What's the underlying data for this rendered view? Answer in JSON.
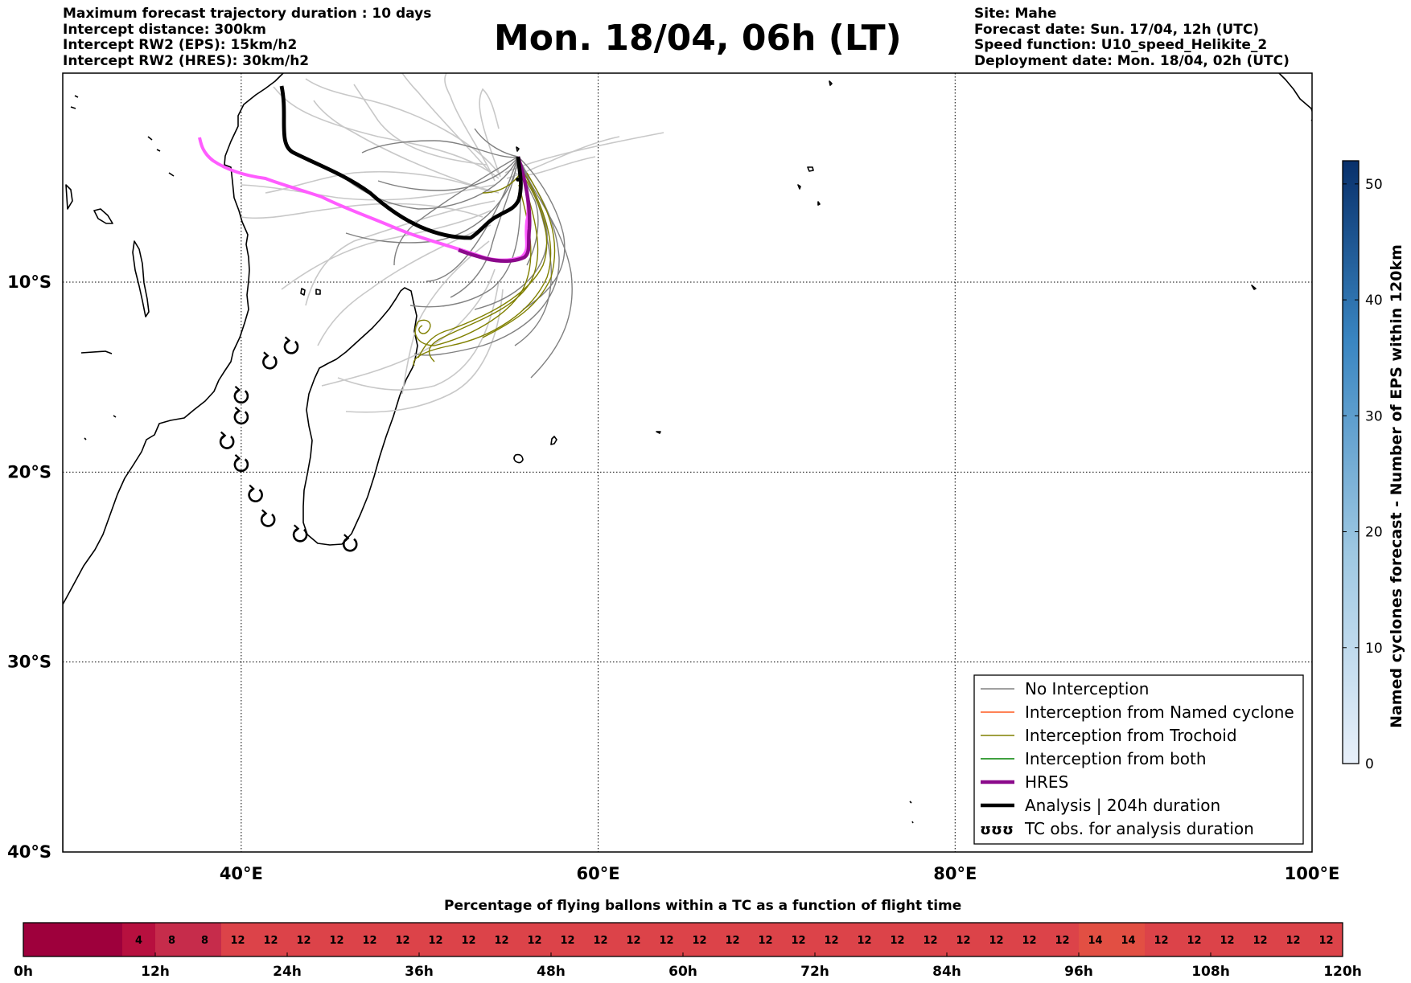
{
  "header_left": [
    "Maximum forecast trajectory duration : 10 days",
    "Intercept distance: 300km",
    "Intercept RW2 (EPS):  15km/h2",
    "Intercept RW2 (HRES): 30km/h2"
  ],
  "header_right": [
    "Site: Mahe",
    "Forecast date: Sun. 17/04, 12h (UTC)",
    "Speed function: U10_speed_Helikite_2",
    "Deployment date: Mon. 18/04, 02h (UTC)"
  ],
  "title": "Mon. 18/04, 06h (LT)",
  "map": {
    "lon_range": [
      30,
      100
    ],
    "lat_range": [
      -40,
      1
    ],
    "lon_ticks": [
      {
        "value": 40,
        "label": "40°E"
      },
      {
        "value": 60,
        "label": "60°E"
      },
      {
        "value": 80,
        "label": "80°E"
      },
      {
        "value": 100,
        "label": "100°E"
      }
    ],
    "lat_ticks": [
      {
        "value": -10,
        "label": "10°S"
      },
      {
        "value": -20,
        "label": "20°S"
      },
      {
        "value": -30,
        "label": "30°S"
      },
      {
        "value": -40,
        "label": "40°S"
      }
    ],
    "grid": "dotted",
    "site": {
      "name": "Mahe",
      "lon": 55.5,
      "lat": -4.6
    },
    "colors": {
      "no_interception": "#808080",
      "named_cyclone": "#ff5a1e",
      "trochoid": "#808000",
      "both": "#008000",
      "hres": "#8b0a8b",
      "hres_alt": "#ff5cff",
      "analysis": "#000000",
      "faded": "#c8c8c8"
    },
    "tc_obs": [
      [
        42.8,
        -13.4
      ],
      [
        41.6,
        -14.2
      ],
      [
        40,
        -16
      ],
      [
        40,
        -17.1
      ],
      [
        39.2,
        -18.4
      ],
      [
        40,
        -19.6
      ],
      [
        40.8,
        -21.2
      ],
      [
        41.5,
        -22.5
      ],
      [
        43.3,
        -23.3
      ],
      [
        46.1,
        -23.8
      ]
    ]
  },
  "legend": {
    "placement": "lower-right",
    "items": [
      {
        "label": "No Interception",
        "color": "#808080",
        "style": "thin"
      },
      {
        "label": "Interception from Named cyclone",
        "color": "#ff5a1e",
        "style": "thin"
      },
      {
        "label": "Interception from Trochoid",
        "color": "#808000",
        "style": "thin"
      },
      {
        "label": "Interception from both",
        "color": "#008000",
        "style": "thin"
      },
      {
        "label": "HRES",
        "color": "#8b0a8b",
        "style": "thick"
      },
      {
        "label": "Analysis | 204h duration",
        "color": "#000000",
        "style": "thick"
      },
      {
        "label": "TC obs. for analysis duration",
        "color": "#000000",
        "style": "symbol",
        "symbol": "ʊʊʊ"
      }
    ]
  },
  "colorbar": {
    "label": "Named cyclones forecast - Number of EPS within 120km",
    "min": 0,
    "max": 52,
    "ticks": [
      0,
      10,
      20,
      30,
      40,
      50
    ],
    "color_low": "#e8f0fa",
    "color_high": "#08306b"
  },
  "timeline": {
    "title": "Percentage of flying ballons within a TC as a function of flight time",
    "hours": [
      0,
      120
    ],
    "tick_labels": [
      "0h",
      "12h",
      "24h",
      "36h",
      "48h",
      "60h",
      "72h",
      "84h",
      "96h",
      "108h",
      "120h"
    ],
    "cells": [
      "",
      "",
      "",
      "4",
      "8",
      "8",
      "12",
      "12",
      "12",
      "12",
      "12",
      "12",
      "12",
      "12",
      "12",
      "12",
      "12",
      "12",
      "12",
      "12",
      "12",
      "12",
      "12",
      "12",
      "12",
      "12",
      "12",
      "12",
      "12",
      "12",
      "12",
      "12",
      "14",
      "14",
      "12",
      "12",
      "12",
      "12",
      "12",
      "12"
    ],
    "values": [
      0,
      0,
      0,
      4,
      8,
      8,
      12,
      12,
      12,
      12,
      12,
      12,
      12,
      12,
      12,
      12,
      12,
      12,
      12,
      12,
      12,
      12,
      12,
      12,
      12,
      12,
      12,
      12,
      12,
      12,
      12,
      12,
      14,
      14,
      12,
      12,
      12,
      12,
      12,
      12
    ],
    "colors": {
      "0": "#9e003c",
      "4": "#b7103f",
      "8": "#c62c4b",
      "12": "#dc4349",
      "14": "#e24f43"
    }
  }
}
